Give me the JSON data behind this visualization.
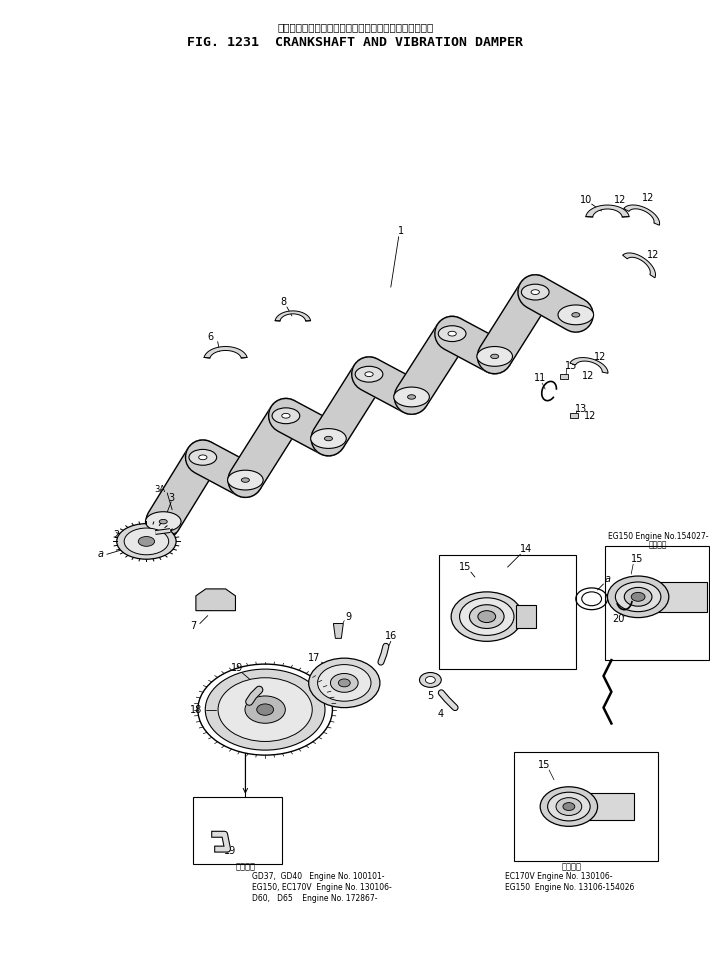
{
  "title_japanese": "クランクシャフト　および　バイブレーション　ダンパ",
  "title_english": "FIG. 1231  CRANKSHAFT AND VIBRATION DAMPER",
  "bg_color": "#ffffff",
  "text_color": "#000000",
  "line_color": "#000000",
  "bottom_left_label": "適用車種",
  "bottom_left_lines": [
    "GD37,  GD40   Engine No. 100101-",
    "EG150, EC170V  Engine No. 130106-",
    "D60,   D65    Engine No. 172867-"
  ],
  "bottom_right_label": "適用車種",
  "bottom_right_lines": [
    "EC170V Engine No. 130106-",
    "EG150  Engine No. 13106-154026"
  ],
  "note_right_label": "適用車種",
  "note_right_text": "EG150 Engine No.154027-"
}
